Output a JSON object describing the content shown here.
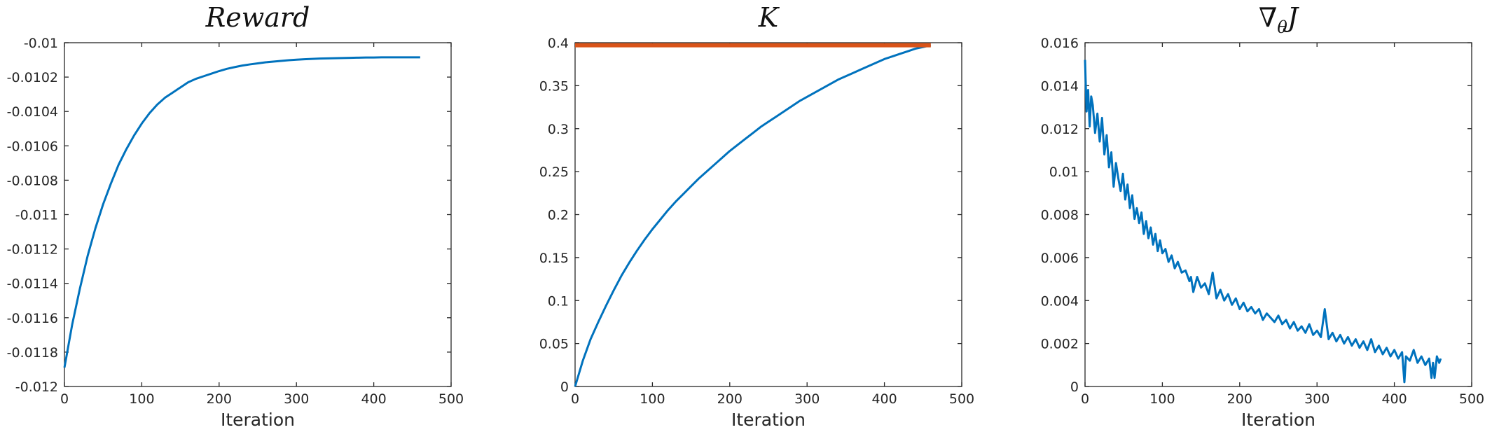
{
  "chart_data": [
    {
      "type": "line",
      "title": "Reward",
      "title_parts": {
        "main": "Reward",
        "sub": ""
      },
      "xlabel": "Iteration",
      "ylabel": "",
      "xlim": [
        0,
        500
      ],
      "ylim": [
        -0.012,
        -0.01
      ],
      "xticks": [
        0,
        100,
        200,
        300,
        400,
        500
      ],
      "xtick_labels": [
        "0",
        "100",
        "200",
        "300",
        "400",
        "500"
      ],
      "yticks": [
        -0.012,
        -0.0118,
        -0.0116,
        -0.0114,
        -0.0112,
        -0.011,
        -0.0108,
        -0.0106,
        -0.0104,
        -0.0102,
        -0.01
      ],
      "ytick_labels": [
        "-0.012",
        "-0.0118",
        "-0.0116",
        "-0.0114",
        "-0.0112",
        "-0.011",
        "-0.0108",
        "-0.0106",
        "-0.0104",
        "-0.0102",
        "-0.01"
      ],
      "grid": false,
      "series": [
        {
          "color": "#0072bd",
          "x": [
            0,
            10,
            20,
            30,
            40,
            50,
            60,
            70,
            80,
            90,
            100,
            110,
            120,
            130,
            140,
            150,
            160,
            170,
            180,
            190,
            200,
            210,
            220,
            230,
            240,
            250,
            260,
            270,
            280,
            290,
            300,
            310,
            320,
            330,
            340,
            350,
            360,
            370,
            380,
            390,
            400,
            410,
            420,
            430,
            440,
            450,
            460
          ],
          "y": [
            -0.01189,
            -0.01164,
            -0.01143,
            -0.01124,
            -0.01108,
            -0.01094,
            -0.01082,
            -0.01071,
            -0.01062,
            -0.01054,
            -0.01047,
            -0.01041,
            -0.01036,
            -0.01032,
            -0.01029,
            -0.01026,
            -0.01023,
            -0.01021,
            -0.010195,
            -0.01018,
            -0.010165,
            -0.010152,
            -0.010142,
            -0.010133,
            -0.010126,
            -0.01012,
            -0.010114,
            -0.01011,
            -0.010106,
            -0.010102,
            -0.010099,
            -0.010096,
            -0.010094,
            -0.010092,
            -0.010091,
            -0.01009,
            -0.010089,
            -0.010088,
            -0.010087,
            -0.010086,
            -0.010086,
            -0.010085,
            -0.010085,
            -0.010085,
            -0.010085,
            -0.010085,
            -0.010085
          ]
        }
      ]
    },
    {
      "type": "line",
      "title": "K",
      "title_parts": {
        "main": "K",
        "sub": ""
      },
      "xlabel": "Iteration",
      "ylabel": "",
      "xlim": [
        0,
        500
      ],
      "ylim": [
        0,
        0.4
      ],
      "xticks": [
        0,
        100,
        200,
        300,
        400,
        500
      ],
      "xtick_labels": [
        "0",
        "100",
        "200",
        "300",
        "400",
        "500"
      ],
      "yticks": [
        0,
        0.05,
        0.1,
        0.15,
        0.2,
        0.25,
        0.3,
        0.35,
        0.4
      ],
      "ytick_labels": [
        "0",
        "0.05",
        "0.1",
        "0.15",
        "0.2",
        "0.25",
        "0.3",
        "0.35",
        "0.4"
      ],
      "grid": false,
      "series": [
        {
          "color": "#0072bd",
          "x": [
            0,
            10,
            20,
            30,
            40,
            50,
            60,
            70,
            80,
            90,
            100,
            110,
            120,
            130,
            140,
            150,
            160,
            170,
            180,
            190,
            200,
            210,
            220,
            230,
            240,
            250,
            260,
            270,
            280,
            290,
            300,
            310,
            320,
            330,
            340,
            350,
            360,
            370,
            380,
            390,
            400,
            410,
            420,
            430,
            440,
            450,
            460
          ],
          "y": [
            0,
            0.03,
            0.055,
            0.075,
            0.094,
            0.112,
            0.129,
            0.144,
            0.158,
            0.171,
            0.183,
            0.194,
            0.205,
            0.215,
            0.224,
            0.233,
            0.242,
            0.25,
            0.258,
            0.266,
            0.274,
            0.281,
            0.288,
            0.295,
            0.302,
            0.308,
            0.314,
            0.32,
            0.326,
            0.332,
            0.337,
            0.342,
            0.347,
            0.352,
            0.357,
            0.361,
            0.365,
            0.369,
            0.373,
            0.377,
            0.381,
            0.384,
            0.387,
            0.39,
            0.393,
            0.395,
            0.397
          ]
        },
        {
          "color": "#d95319",
          "x": [
            0,
            460
          ],
          "y": [
            0.397,
            0.397
          ]
        }
      ]
    },
    {
      "type": "line",
      "title": "∇θJ",
      "title_parts": {
        "main": "∇",
        "sub": "θ",
        "tail": "J"
      },
      "xlabel": "Iteration",
      "ylabel": "",
      "xlim": [
        0,
        500
      ],
      "ylim": [
        0,
        0.016
      ],
      "xticks": [
        0,
        100,
        200,
        300,
        400,
        500
      ],
      "xtick_labels": [
        "0",
        "100",
        "200",
        "300",
        "400",
        "500"
      ],
      "yticks": [
        0,
        0.002,
        0.004,
        0.006,
        0.008,
        0.01,
        0.012,
        0.014,
        0.016
      ],
      "ytick_labels": [
        "0",
        "0.002",
        "0.004",
        "0.006",
        "0.008",
        "0.01",
        "0.012",
        "0.014",
        "0.016"
      ],
      "grid": false,
      "series": [
        {
          "color": "#0072bd",
          "x": [
            0,
            2,
            4,
            6,
            8,
            10,
            13,
            16,
            19,
            22,
            25,
            28,
            31,
            34,
            37,
            40,
            43,
            46,
            49,
            52,
            55,
            58,
            61,
            64,
            67,
            70,
            73,
            76,
            79,
            82,
            85,
            88,
            91,
            94,
            97,
            100,
            104,
            108,
            112,
            116,
            120,
            125,
            130,
            135,
            137,
            140,
            145,
            150,
            155,
            160,
            165,
            170,
            175,
            180,
            185,
            190,
            195,
            200,
            205,
            210,
            215,
            220,
            225,
            230,
            235,
            240,
            245,
            250,
            255,
            260,
            265,
            270,
            275,
            280,
            285,
            290,
            295,
            300,
            305,
            310,
            315,
            320,
            325,
            330,
            335,
            340,
            345,
            350,
            355,
            360,
            365,
            370,
            375,
            380,
            385,
            390,
            395,
            400,
            405,
            410,
            413,
            415,
            420,
            425,
            430,
            435,
            440,
            445,
            448,
            450,
            452,
            455,
            458,
            460
          ],
          "y": [
            0.0152,
            0.0128,
            0.0138,
            0.0121,
            0.0135,
            0.0131,
            0.0118,
            0.0127,
            0.0114,
            0.0125,
            0.0108,
            0.0117,
            0.0102,
            0.0109,
            0.0093,
            0.0104,
            0.0097,
            0.0091,
            0.0099,
            0.0087,
            0.0094,
            0.0083,
            0.0089,
            0.0078,
            0.0083,
            0.0076,
            0.0081,
            0.0071,
            0.0077,
            0.0069,
            0.0074,
            0.0066,
            0.0071,
            0.0063,
            0.0068,
            0.0062,
            0.0064,
            0.0058,
            0.0061,
            0.0055,
            0.0058,
            0.0053,
            0.0054,
            0.0049,
            0.0051,
            0.0044,
            0.0051,
            0.0046,
            0.0048,
            0.0043,
            0.0053,
            0.0041,
            0.0045,
            0.004,
            0.0043,
            0.0038,
            0.0041,
            0.0036,
            0.0039,
            0.0035,
            0.0037,
            0.0034,
            0.0036,
            0.0031,
            0.0034,
            0.0032,
            0.003,
            0.0033,
            0.0029,
            0.0031,
            0.0027,
            0.003,
            0.0026,
            0.0028,
            0.0025,
            0.0029,
            0.0024,
            0.0026,
            0.0023,
            0.0036,
            0.0022,
            0.0025,
            0.0021,
            0.0024,
            0.002,
            0.0023,
            0.0019,
            0.0022,
            0.0018,
            0.0021,
            0.0017,
            0.0022,
            0.0016,
            0.0019,
            0.0015,
            0.0018,
            0.0014,
            0.0017,
            0.0013,
            0.0016,
            0.0002,
            0.0014,
            0.0012,
            0.0017,
            0.0011,
            0.0014,
            0.001,
            0.0013,
            0.0004,
            0.0011,
            0.0004,
            0.0014,
            0.0011,
            0.0013
          ]
        }
      ]
    }
  ]
}
